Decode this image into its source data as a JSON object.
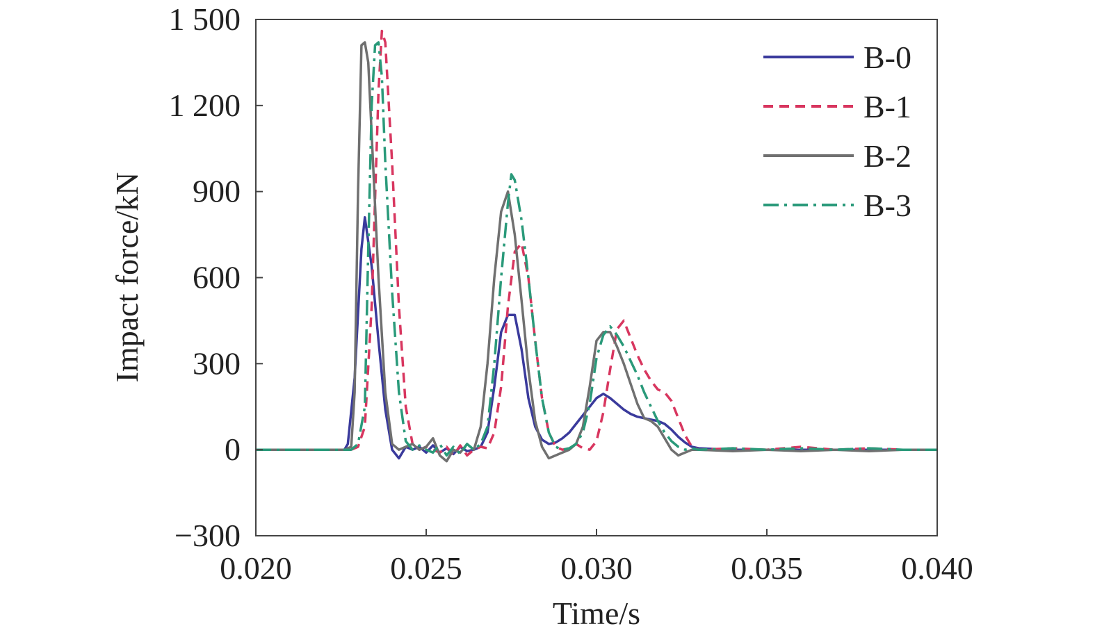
{
  "chart_data": {
    "type": "line",
    "xlabel": "Time/s",
    "ylabel": "Impact force/kN",
    "xlim": [
      0.02,
      0.04
    ],
    "ylim": [
      -300,
      1500
    ],
    "xticks": [
      0.02,
      0.025,
      0.03,
      0.035,
      0.04
    ],
    "xtick_labels": [
      "0.020",
      "0.025",
      "0.030",
      "0.035",
      "0.040"
    ],
    "yticks": [
      -300,
      0,
      300,
      600,
      900,
      1200,
      1500
    ],
    "ytick_labels": [
      "−300",
      "0",
      "300",
      "600",
      "900",
      "1 200",
      "1 500"
    ],
    "grid": false,
    "legend_position": "top-right",
    "series": [
      {
        "name": "B-0",
        "color": "#3a3a9c",
        "dash": "solid",
        "x": [
          0.02,
          0.0226,
          0.0227,
          0.0229,
          0.0231,
          0.0232,
          0.0234,
          0.0236,
          0.0238,
          0.024,
          0.0242,
          0.0244,
          0.0246,
          0.0248,
          0.025,
          0.0252,
          0.0254,
          0.0256,
          0.0258,
          0.026,
          0.0262,
          0.0264,
          0.0266,
          0.0268,
          0.027,
          0.0272,
          0.0274,
          0.0276,
          0.0278,
          0.028,
          0.0282,
          0.0284,
          0.0286,
          0.0288,
          0.029,
          0.0292,
          0.0294,
          0.0296,
          0.0298,
          0.03,
          0.0302,
          0.0304,
          0.0306,
          0.0308,
          0.031,
          0.0312,
          0.0314,
          0.0316,
          0.0318,
          0.032,
          0.0322,
          0.0324,
          0.0326,
          0.0328,
          0.033,
          0.034,
          0.035,
          0.036,
          0.037,
          0.038,
          0.039,
          0.04
        ],
        "values": [
          0,
          0,
          20,
          250,
          700,
          810,
          640,
          380,
          140,
          0,
          -30,
          10,
          0,
          10,
          -10,
          15,
          -10,
          5,
          -15,
          10,
          -5,
          0,
          10,
          60,
          220,
          410,
          470,
          470,
          350,
          180,
          80,
          35,
          20,
          25,
          40,
          60,
          90,
          120,
          150,
          180,
          195,
          180,
          160,
          140,
          125,
          115,
          110,
          105,
          100,
          90,
          70,
          45,
          25,
          10,
          5,
          0,
          0,
          0,
          0,
          0,
          0,
          0
        ]
      },
      {
        "name": "B-1",
        "color": "#d8365f",
        "dash": "dashed",
        "x": [
          0.02,
          0.0228,
          0.023,
          0.0232,
          0.0234,
          0.0236,
          0.0237,
          0.0238,
          0.024,
          0.0242,
          0.0244,
          0.0246,
          0.0248,
          0.025,
          0.0252,
          0.0254,
          0.0256,
          0.0258,
          0.026,
          0.0262,
          0.0264,
          0.0266,
          0.0268,
          0.027,
          0.0272,
          0.0274,
          0.0276,
          0.0278,
          0.028,
          0.0282,
          0.0284,
          0.0286,
          0.0288,
          0.029,
          0.0292,
          0.0294,
          0.0296,
          0.0298,
          0.03,
          0.0302,
          0.0304,
          0.0306,
          0.0308,
          0.031,
          0.0312,
          0.0314,
          0.0316,
          0.0318,
          0.032,
          0.0322,
          0.0324,
          0.0326,
          0.0328,
          0.033,
          0.034,
          0.035,
          0.036,
          0.037,
          0.038,
          0.039,
          0.04
        ],
        "values": [
          0,
          0,
          10,
          80,
          500,
          1250,
          1460,
          1420,
          1000,
          500,
          150,
          20,
          0,
          10,
          0,
          -10,
          10,
          -20,
          15,
          -20,
          0,
          10,
          5,
          60,
          220,
          500,
          690,
          720,
          600,
          380,
          180,
          60,
          10,
          0,
          5,
          20,
          5,
          0,
          30,
          130,
          280,
          420,
          450,
          390,
          330,
          280,
          240,
          210,
          200,
          170,
          110,
          50,
          10,
          0,
          5,
          0,
          10,
          0,
          5,
          0,
          0
        ]
      },
      {
        "name": "B-2",
        "color": "#707070",
        "dash": "solid",
        "x": [
          0.02,
          0.0226,
          0.0228,
          0.0229,
          0.023,
          0.0231,
          0.0232,
          0.0233,
          0.0234,
          0.0236,
          0.0238,
          0.024,
          0.0242,
          0.0244,
          0.0246,
          0.0248,
          0.025,
          0.0252,
          0.0254,
          0.0256,
          0.0258,
          0.026,
          0.0262,
          0.0264,
          0.0266,
          0.0268,
          0.027,
          0.0272,
          0.0274,
          0.0276,
          0.0278,
          0.028,
          0.0282,
          0.0284,
          0.0286,
          0.0288,
          0.029,
          0.0292,
          0.0294,
          0.0296,
          0.0298,
          0.03,
          0.0302,
          0.0304,
          0.0306,
          0.0308,
          0.031,
          0.0312,
          0.0314,
          0.0316,
          0.0318,
          0.032,
          0.0322,
          0.0324,
          0.0326,
          0.0328,
          0.033,
          0.034,
          0.035,
          0.036,
          0.037,
          0.038,
          0.039,
          0.04
        ],
        "values": [
          0,
          0,
          10,
          200,
          900,
          1410,
          1420,
          1350,
          1100,
          600,
          200,
          20,
          0,
          10,
          20,
          0,
          10,
          40,
          -20,
          -40,
          0,
          -10,
          20,
          0,
          80,
          300,
          600,
          830,
          900,
          750,
          520,
          280,
          100,
          10,
          -30,
          -20,
          -10,
          0,
          20,
          80,
          220,
          380,
          410,
          410,
          360,
          300,
          230,
          160,
          110,
          100,
          80,
          40,
          0,
          -20,
          -10,
          0,
          0,
          -5,
          0,
          -5,
          0,
          -5,
          0,
          0
        ]
      },
      {
        "name": "B-3",
        "color": "#2a9a7a",
        "dash": "dashdot",
        "x": [
          0.02,
          0.0228,
          0.023,
          0.0232,
          0.0233,
          0.0234,
          0.0235,
          0.0236,
          0.0237,
          0.0238,
          0.024,
          0.0242,
          0.0244,
          0.0246,
          0.0248,
          0.025,
          0.0252,
          0.0254,
          0.0256,
          0.0258,
          0.026,
          0.0262,
          0.0264,
          0.0266,
          0.0268,
          0.027,
          0.0272,
          0.0274,
          0.0275,
          0.0276,
          0.0278,
          0.028,
          0.0282,
          0.0284,
          0.0286,
          0.0288,
          0.029,
          0.0292,
          0.0294,
          0.0296,
          0.0298,
          0.03,
          0.0302,
          0.0304,
          0.0306,
          0.0308,
          0.031,
          0.0312,
          0.0314,
          0.0316,
          0.0318,
          0.032,
          0.0322,
          0.0324,
          0.0326,
          0.0328,
          0.033,
          0.034,
          0.035,
          0.036,
          0.037,
          0.038,
          0.039,
          0.04
        ],
        "values": [
          0,
          0,
          20,
          150,
          700,
          1200,
          1410,
          1420,
          1300,
          1000,
          550,
          200,
          30,
          0,
          15,
          0,
          -10,
          20,
          -20,
          10,
          -15,
          20,
          0,
          20,
          80,
          300,
          600,
          860,
          960,
          940,
          800,
          600,
          380,
          180,
          60,
          10,
          0,
          5,
          20,
          60,
          160,
          320,
          400,
          430,
          400,
          360,
          310,
          260,
          200,
          150,
          100,
          60,
          30,
          10,
          0,
          5,
          0,
          5,
          0,
          5,
          0,
          5,
          0,
          0
        ]
      }
    ]
  }
}
